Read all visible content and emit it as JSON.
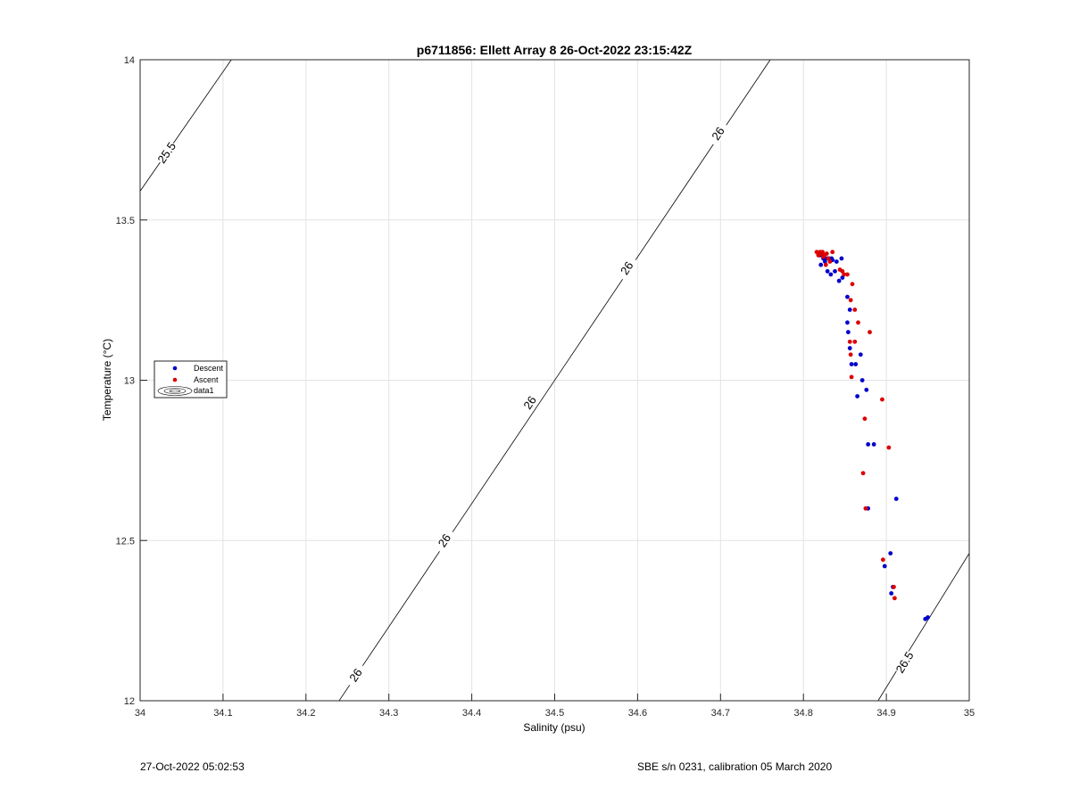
{
  "chart_data": {
    "type": "scatter",
    "title": "p6711856: Ellett Array 8 26-Oct-2022 23:15:42Z",
    "xlabel": "Salinity (psu)",
    "ylabel": "Temperature (°C)",
    "xlim": [
      34,
      35
    ],
    "ylim": [
      12,
      14
    ],
    "xticks": [
      "34",
      "34.1",
      "34.2",
      "34.3",
      "34.4",
      "34.5",
      "34.6",
      "34.7",
      "34.8",
      "34.9",
      "35"
    ],
    "yticks": [
      "12",
      "12.5",
      "13",
      "13.5",
      "14"
    ],
    "grid": true,
    "legend_position": "left",
    "legend": [
      "Descent",
      "Ascent",
      "data1"
    ],
    "contours": [
      {
        "level": "25.5",
        "points": [
          [
            34.0,
            13.59
          ],
          [
            34.11,
            14.0
          ]
        ],
        "label_at": [
          34.032,
          13.71
        ]
      },
      {
        "level": "26",
        "points": [
          [
            34.24,
            12.0
          ],
          [
            34.76,
            14.0
          ]
        ],
        "labels_at": [
          [
            34.26,
            12.08
          ],
          [
            34.367,
            12.5
          ],
          [
            34.47,
            12.93
          ],
          [
            34.587,
            13.35
          ],
          [
            34.697,
            13.77
          ]
        ]
      },
      {
        "level": "26.5",
        "points": [
          [
            34.89,
            12.0
          ],
          [
            35.0,
            12.46
          ]
        ],
        "label_at": [
          34.922,
          12.12
        ]
      }
    ],
    "series": [
      {
        "name": "Descent",
        "color": "#0000cc",
        "points": [
          [
            34.95,
            12.26
          ],
          [
            34.947,
            12.255
          ],
          [
            34.906,
            12.335
          ],
          [
            34.908,
            12.355
          ],
          [
            34.898,
            12.42
          ],
          [
            34.905,
            12.46
          ],
          [
            34.912,
            12.63
          ],
          [
            34.878,
            12.6
          ],
          [
            34.878,
            12.8
          ],
          [
            34.885,
            12.8
          ],
          [
            34.876,
            12.97
          ],
          [
            34.871,
            13.0
          ],
          [
            34.865,
            12.95
          ],
          [
            34.869,
            13.08
          ],
          [
            34.863,
            13.05
          ],
          [
            34.858,
            13.05
          ],
          [
            34.856,
            13.1
          ],
          [
            34.854,
            13.15
          ],
          [
            34.853,
            13.18
          ],
          [
            34.856,
            13.22
          ],
          [
            34.853,
            13.26
          ],
          [
            34.847,
            13.32
          ],
          [
            34.843,
            13.31
          ],
          [
            34.838,
            13.34
          ],
          [
            34.833,
            13.33
          ],
          [
            34.829,
            13.34
          ],
          [
            34.826,
            13.37
          ],
          [
            34.828,
            13.38
          ],
          [
            34.831,
            13.38
          ],
          [
            34.835,
            13.375
          ],
          [
            34.84,
            13.37
          ],
          [
            34.846,
            13.38
          ],
          [
            34.821,
            13.36
          ],
          [
            34.82,
            13.39
          ],
          [
            34.824,
            13.38
          ],
          [
            34.834,
            13.38
          ]
        ]
      },
      {
        "name": "Ascent",
        "color": "#dd0000",
        "points": [
          [
            34.91,
            12.32
          ],
          [
            34.909,
            12.355
          ],
          [
            34.896,
            12.44
          ],
          [
            34.903,
            12.79
          ],
          [
            34.875,
            12.6
          ],
          [
            34.872,
            12.71
          ],
          [
            34.874,
            12.88
          ],
          [
            34.895,
            12.94
          ],
          [
            34.88,
            13.15
          ],
          [
            34.858,
            13.01
          ],
          [
            34.857,
            13.08
          ],
          [
            34.856,
            13.12
          ],
          [
            34.862,
            13.12
          ],
          [
            34.866,
            13.18
          ],
          [
            34.862,
            13.22
          ],
          [
            34.857,
            13.25
          ],
          [
            34.859,
            13.3
          ],
          [
            34.853,
            13.33
          ],
          [
            34.847,
            13.34
          ],
          [
            34.849,
            13.33
          ],
          [
            34.844,
            13.345
          ],
          [
            34.835,
            13.4
          ],
          [
            34.832,
            13.37
          ],
          [
            34.827,
            13.36
          ],
          [
            34.825,
            13.39
          ],
          [
            34.822,
            13.395
          ],
          [
            34.82,
            13.4
          ],
          [
            34.818,
            13.39
          ],
          [
            34.816,
            13.4
          ],
          [
            34.823,
            13.4
          ],
          [
            34.828,
            13.395
          ],
          [
            34.824,
            13.385
          ],
          [
            34.83,
            13.38
          ]
        ]
      }
    ]
  },
  "footer": {
    "timestamp": "27-Oct-2022 05:02:53",
    "calibration": "SBE s/n 0231, calibration 05 March 2020"
  }
}
